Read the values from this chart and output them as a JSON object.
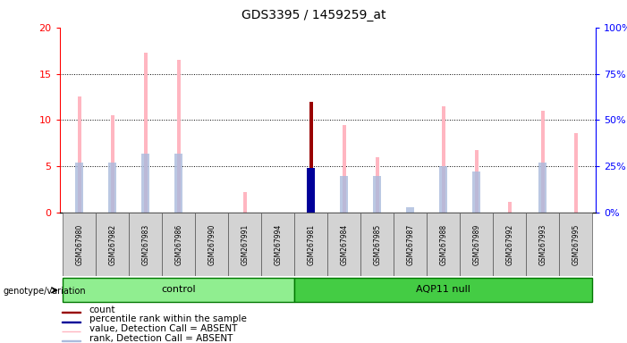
{
  "title": "GDS3395 / 1459259_at",
  "samples": [
    "GSM267980",
    "GSM267982",
    "GSM267983",
    "GSM267986",
    "GSM267990",
    "GSM267991",
    "GSM267994",
    "GSM267981",
    "GSM267984",
    "GSM267985",
    "GSM267987",
    "GSM267988",
    "GSM267989",
    "GSM267992",
    "GSM267993",
    "GSM267995"
  ],
  "n_control": 7,
  "value_absent": [
    12.5,
    10.5,
    17.3,
    16.5,
    0.0,
    2.2,
    0.0,
    0.0,
    9.5,
    6.0,
    0.0,
    11.5,
    6.8,
    1.2,
    11.0,
    8.6
  ],
  "rank_absent_pct": [
    27,
    27,
    32,
    32,
    0,
    0,
    0,
    0,
    20,
    20,
    3,
    25,
    22,
    0,
    27,
    0
  ],
  "count_present": [
    0,
    0,
    0,
    0,
    0,
    0,
    0,
    12.0,
    0,
    0,
    0,
    0,
    0,
    0,
    0,
    0
  ],
  "percentile_present_pct": [
    0,
    0,
    0,
    0,
    0,
    0,
    0,
    24,
    0,
    0,
    0,
    0,
    0,
    0,
    0,
    0
  ],
  "ylim_left": [
    0,
    20
  ],
  "ylim_right": [
    0,
    100
  ],
  "yticks_left": [
    0,
    5,
    10,
    15,
    20
  ],
  "yticks_right": [
    0,
    25,
    50,
    75,
    100
  ],
  "ytick_labels_right": [
    "0%",
    "25%",
    "50%",
    "75%",
    "100%"
  ],
  "color_value_absent": "#FFB6C1",
  "color_rank_absent": "#AABBDD",
  "color_count": "#990000",
  "color_percentile": "#000099",
  "color_sample_box": "#d3d3d3",
  "color_control": "#90EE90",
  "color_aqp11": "#44CC44",
  "genotype_label": "genotype/variation",
  "control_label": "control",
  "aqp11_label": "AQP11 null",
  "legend_items": [
    {
      "label": "count",
      "color": "#990000"
    },
    {
      "label": "percentile rank within the sample",
      "color": "#000099"
    },
    {
      "label": "value, Detection Call = ABSENT",
      "color": "#FFB6C1"
    },
    {
      "label": "rank, Detection Call = ABSENT",
      "color": "#AABBDD"
    }
  ]
}
